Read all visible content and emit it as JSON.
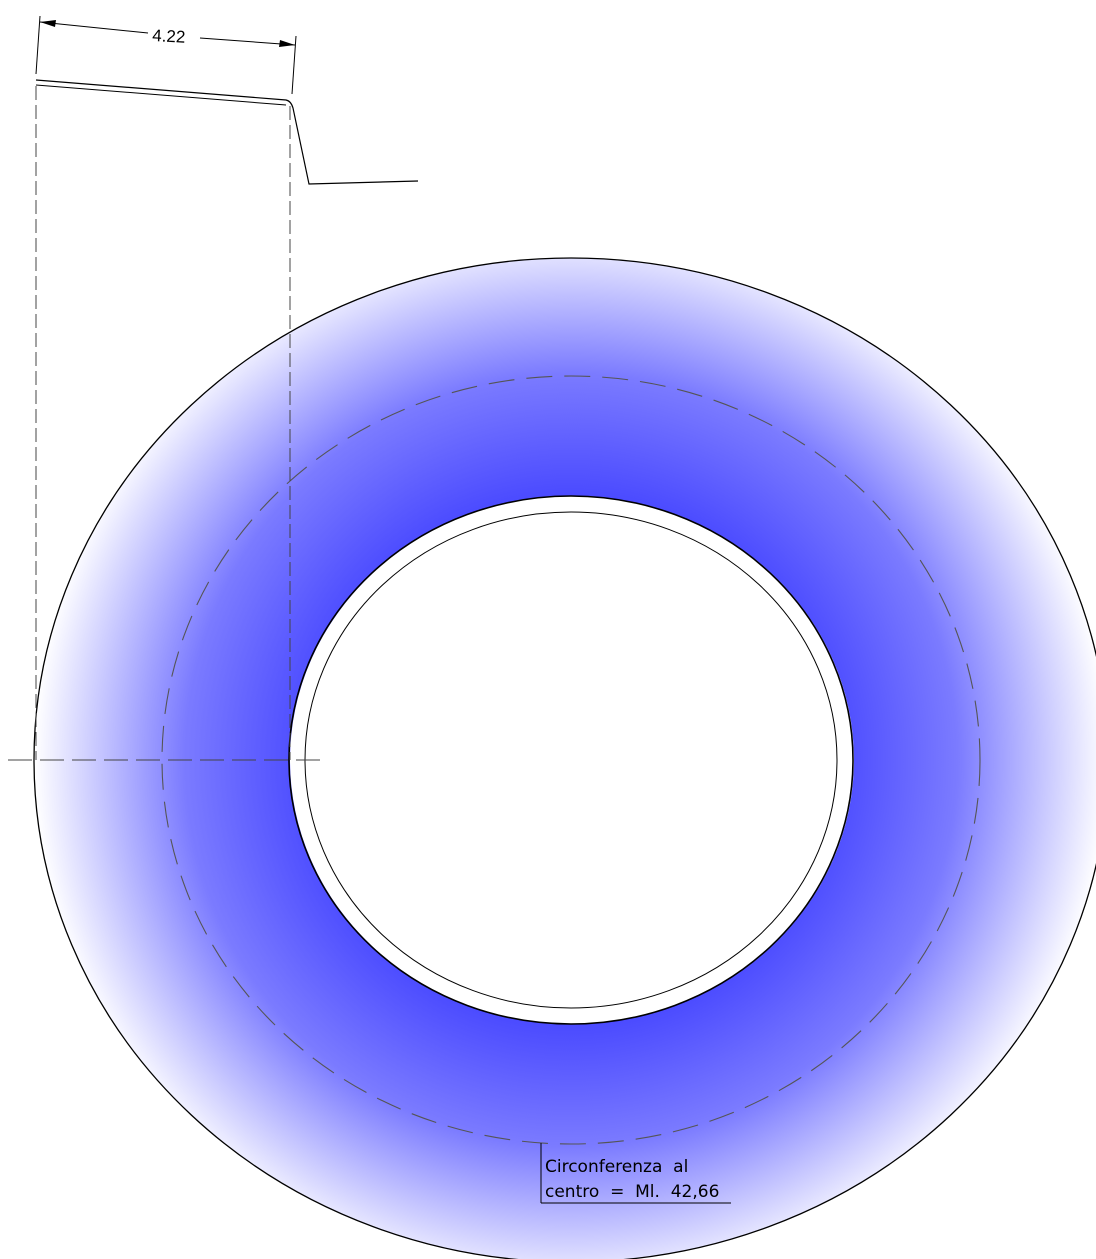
{
  "dimension": {
    "value": "4.22"
  },
  "note": {
    "line1": "Circonferenza  al",
    "line2": "centro  =  Ml.  42,66"
  },
  "colors": {
    "ring_inner": "#4a4aff",
    "ring_outer": "#ffffff",
    "line": "#000000",
    "dash": "#555555"
  }
}
